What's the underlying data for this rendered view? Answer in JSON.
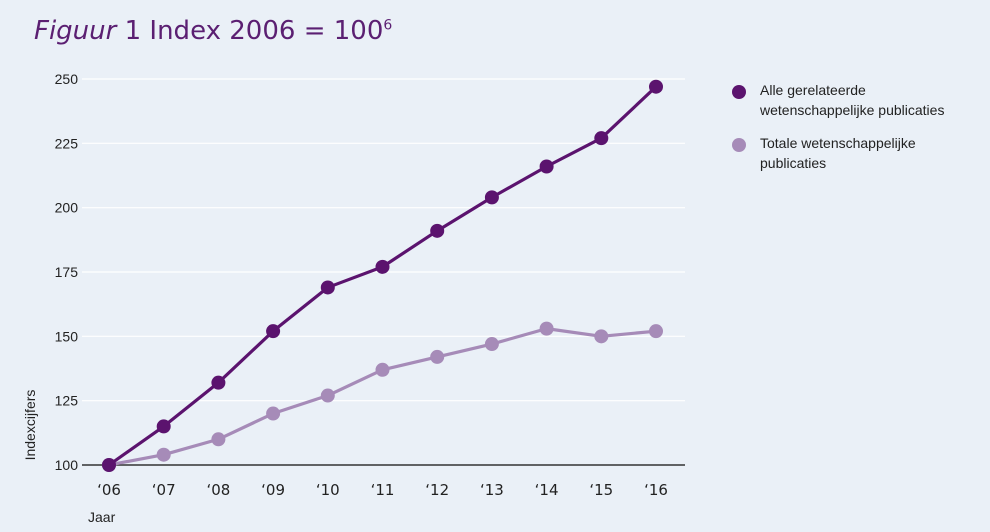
{
  "title": {
    "lead": "Figuur",
    "rest": " 1 Index 2006 = 100",
    "sup": "6"
  },
  "colors": {
    "background": "#eaf0f7",
    "series1": "#5b136e",
    "series2": "#a68bb8",
    "grid": "#ffffff",
    "axis": "#333333"
  },
  "chart_data": {
    "type": "line",
    "xlabel": "Jaar",
    "ylabel": "Indexcijfers",
    "ylim": [
      100,
      250
    ],
    "yticks": [
      100,
      125,
      150,
      175,
      200,
      225,
      250
    ],
    "grid": true,
    "legend_position": "right",
    "categories": [
      "‘06",
      "‘07",
      "‘08",
      "‘09",
      "‘10",
      "‘11",
      "‘12",
      "‘13",
      "‘14",
      "‘15",
      "‘16"
    ],
    "series": [
      {
        "name": "Alle gerelateerde wetenschappelijke publicaties",
        "values": [
          100,
          115,
          132,
          152,
          169,
          177,
          191,
          204,
          216,
          227,
          247
        ]
      },
      {
        "name": "Totale wetenschappelijke publicaties",
        "values": [
          100,
          104,
          110,
          120,
          127,
          137,
          142,
          147,
          153,
          150,
          152
        ]
      }
    ]
  }
}
